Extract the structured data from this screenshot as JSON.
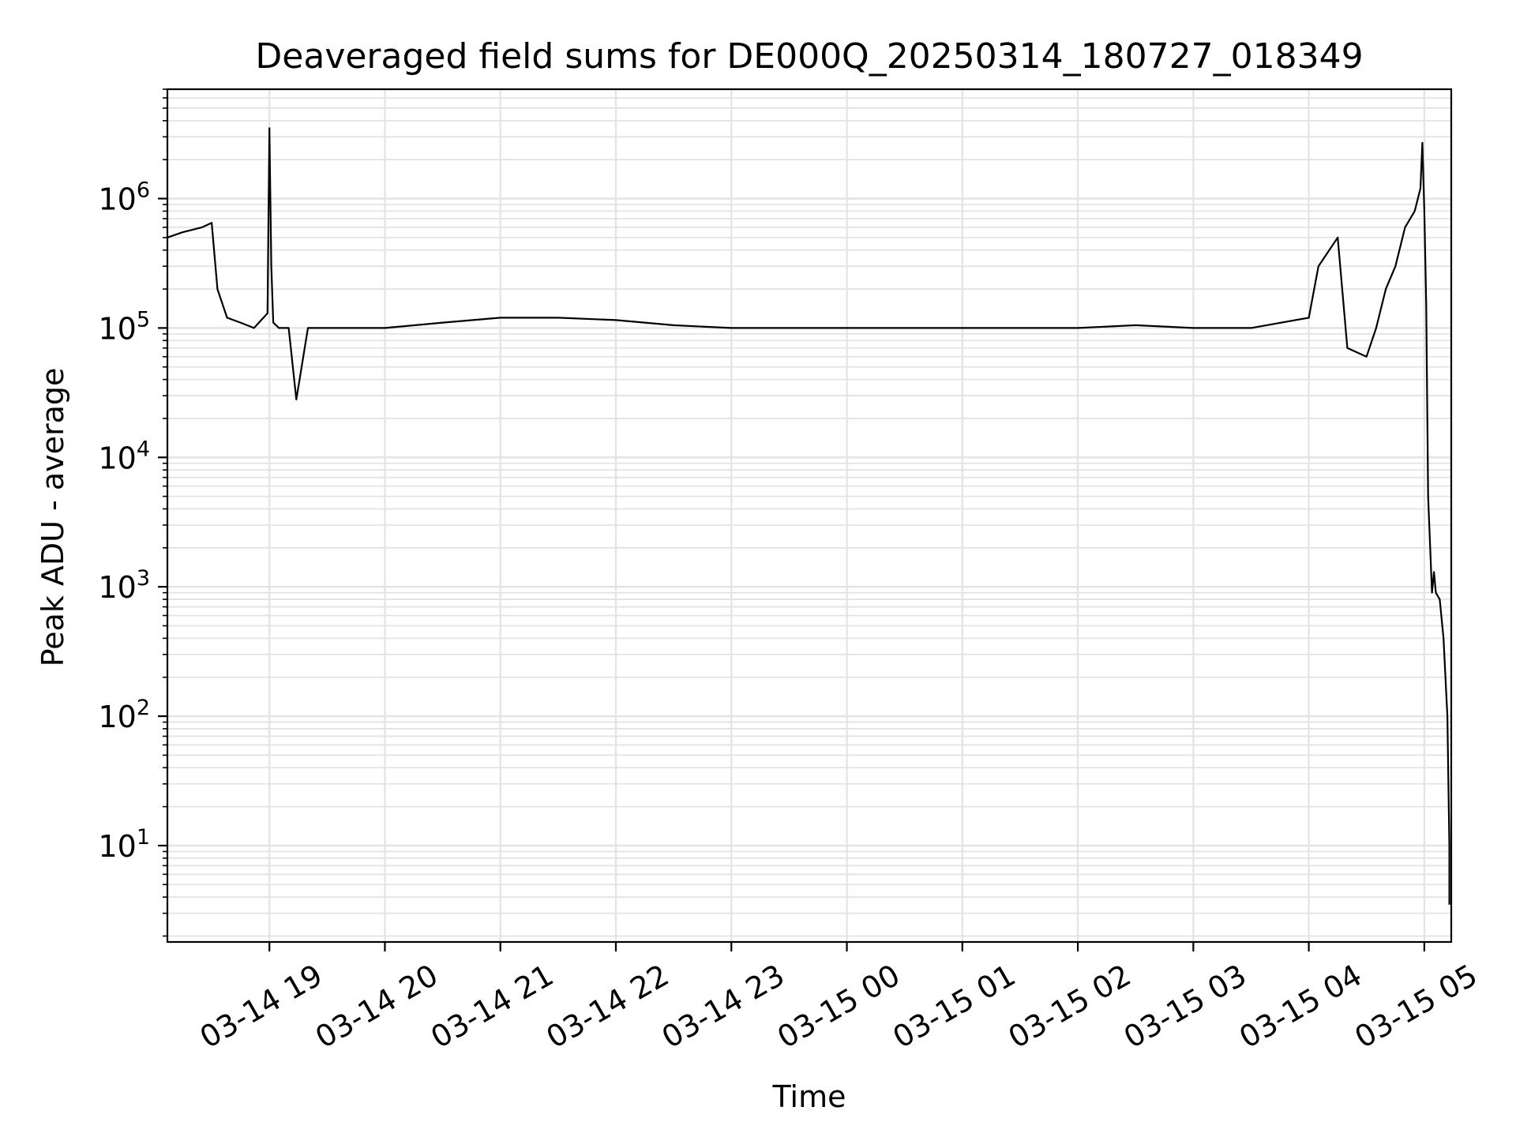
{
  "chart_data": {
    "type": "line",
    "title": "Deaveraged field sums for DE000Q_20250314_180727_018349",
    "xlabel": "Time",
    "ylabel": "Peak ADU - average",
    "yscale": "log",
    "grid": true,
    "grid_color": "#e3e3e3",
    "line_color": "#000000",
    "xlim": [
      "2025-03-14 18:07",
      "2025-03-15 05:14"
    ],
    "ylim": [
      1.8,
      7000000
    ],
    "x_ticks": [
      {
        "value": "2025-03-14 19:00",
        "label": "03-14 19"
      },
      {
        "value": "2025-03-14 20:00",
        "label": "03-14 20"
      },
      {
        "value": "2025-03-14 21:00",
        "label": "03-14 21"
      },
      {
        "value": "2025-03-14 22:00",
        "label": "03-14 22"
      },
      {
        "value": "2025-03-14 23:00",
        "label": "03-14 23"
      },
      {
        "value": "2025-03-15 00:00",
        "label": "03-15 00"
      },
      {
        "value": "2025-03-15 01:00",
        "label": "03-15 01"
      },
      {
        "value": "2025-03-15 02:00",
        "label": "03-15 02"
      },
      {
        "value": "2025-03-15 03:00",
        "label": "03-15 03"
      },
      {
        "value": "2025-03-15 04:00",
        "label": "03-15 04"
      },
      {
        "value": "2025-03-15 05:00",
        "label": "03-15 05"
      }
    ],
    "y_ticks": [
      {
        "value": 10,
        "base": "10",
        "exp": "1"
      },
      {
        "value": 100,
        "base": "10",
        "exp": "2"
      },
      {
        "value": 1000,
        "base": "10",
        "exp": "3"
      },
      {
        "value": 10000,
        "base": "10",
        "exp": "4"
      },
      {
        "value": 100000,
        "base": "10",
        "exp": "5"
      },
      {
        "value": 1000000,
        "base": "10",
        "exp": "6"
      }
    ],
    "series": [
      {
        "x": [
          "2025-03-14 18:07",
          "2025-03-14 18:15",
          "2025-03-14 18:25",
          "2025-03-14 18:30",
          "2025-03-14 18:33",
          "2025-03-14 18:38",
          "2025-03-14 18:45",
          "2025-03-14 18:52",
          "2025-03-14 18:59",
          "2025-03-14 19:00",
          "2025-03-14 19:01",
          "2025-03-14 19:02",
          "2025-03-14 19:05",
          "2025-03-14 19:10",
          "2025-03-14 19:14",
          "2025-03-14 19:20",
          "2025-03-14 19:40",
          "2025-03-14 20:00",
          "2025-03-14 20:30",
          "2025-03-14 21:00",
          "2025-03-14 21:30",
          "2025-03-14 22:00",
          "2025-03-14 22:30",
          "2025-03-14 23:00",
          "2025-03-14 23:30",
          "2025-03-15 00:00",
          "2025-03-15 00:30",
          "2025-03-15 01:00",
          "2025-03-15 01:30",
          "2025-03-15 02:00",
          "2025-03-15 02:30",
          "2025-03-15 03:00",
          "2025-03-15 03:30",
          "2025-03-15 04:00",
          "2025-03-15 04:05",
          "2025-03-15 04:15",
          "2025-03-15 04:20",
          "2025-03-15 04:30",
          "2025-03-15 04:35",
          "2025-03-15 04:40",
          "2025-03-15 04:45",
          "2025-03-15 04:50",
          "2025-03-15 04:55",
          "2025-03-15 04:58",
          "2025-03-15 04:59",
          "2025-03-15 05:00",
          "2025-03-15 05:01",
          "2025-03-15 05:02",
          "2025-03-15 05:04",
          "2025-03-15 05:05",
          "2025-03-15 05:06",
          "2025-03-15 05:08",
          "2025-03-15 05:10",
          "2025-03-15 05:12",
          "2025-03-15 05:13",
          "2025-03-15 05:13"
        ],
        "y": [
          500000,
          550000,
          600000,
          650000,
          200000,
          120000,
          110000,
          100000,
          130000,
          3500000,
          300000,
          110000,
          100000,
          100000,
          28000,
          100000,
          100000,
          100000,
          110000,
          120000,
          120000,
          115000,
          105000,
          100000,
          100000,
          100000,
          100000,
          100000,
          100000,
          100000,
          105000,
          100000,
          100000,
          120000,
          300000,
          500000,
          70000,
          60000,
          100000,
          200000,
          300000,
          600000,
          800000,
          1200000,
          2700000,
          800000,
          150000,
          5000,
          900,
          1300,
          900,
          800,
          400,
          100,
          10,
          3.5
        ]
      }
    ]
  }
}
